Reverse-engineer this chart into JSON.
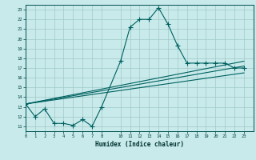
{
  "xlabel": "Humidex (Indice chaleur)",
  "bg_color": "#c8eaea",
  "grid_color": "#a0c8c8",
  "line_color": "#006060",
  "xlim": [
    0,
    24
  ],
  "ylim": [
    10.5,
    23.5
  ],
  "yticks": [
    11,
    12,
    13,
    14,
    15,
    16,
    17,
    18,
    19,
    20,
    21,
    22,
    23
  ],
  "xticks": [
    0,
    1,
    2,
    3,
    4,
    5,
    6,
    7,
    8,
    10,
    11,
    12,
    13,
    14,
    15,
    16,
    17,
    18,
    19,
    20,
    21,
    22,
    23
  ],
  "line1_x": [
    0,
    1,
    2,
    3,
    4,
    5,
    6,
    7,
    8,
    10,
    11,
    12,
    13,
    14,
    15,
    16,
    17,
    18,
    19,
    20,
    21,
    22,
    23
  ],
  "line1_y": [
    13.3,
    12.0,
    12.8,
    11.3,
    11.3,
    11.1,
    11.7,
    11.0,
    13.0,
    17.7,
    21.2,
    22.0,
    22.0,
    23.2,
    21.5,
    19.3,
    17.5,
    17.5,
    17.5,
    17.5,
    17.5,
    17.0,
    17.0
  ],
  "line2_y_start": 13.3,
  "line2_y_end": 17.2,
  "line3_y_start": 13.3,
  "line3_y_end": 16.5,
  "line4_y_start": 13.3,
  "line4_y_end": 17.7
}
